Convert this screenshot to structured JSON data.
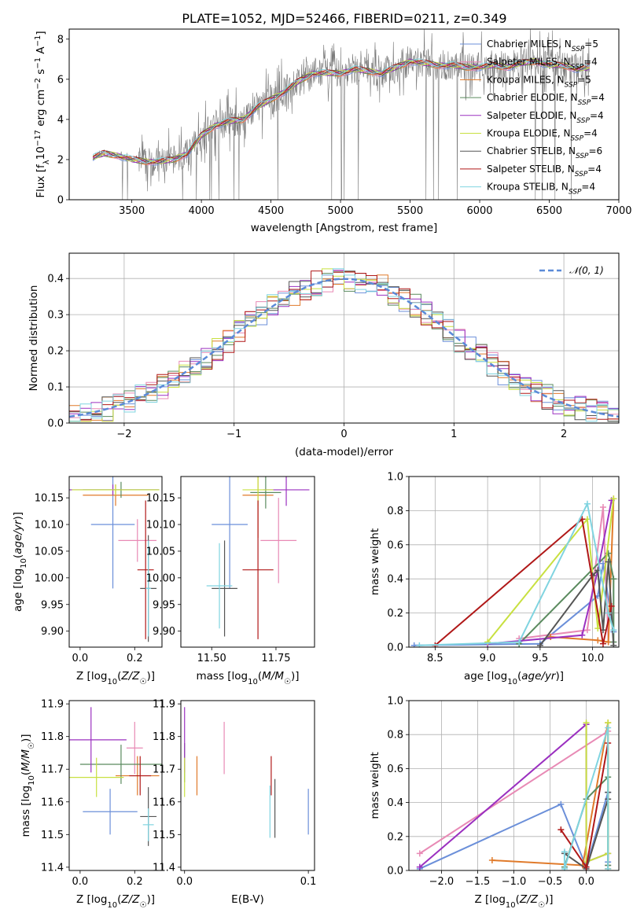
{
  "title": "PLATE=1052, MJD=52466, FIBERID=0211, z=0.349",
  "colors": {
    "chabrier_miles": "#6b8fd9",
    "salpeter_miles": "#e88ab5",
    "kroupa_miles": "#e07a2a",
    "chabrier_elodie": "#5a8a5e",
    "salpeter_elodie": "#9b30c0",
    "kroupa_elodie": "#c8e040",
    "chabrier_stelib": "#555555",
    "salpeter_stelib": "#b01818",
    "kroupa_stelib": "#80d4e0",
    "data": "#7a7a7a",
    "normal": "#5b8ad8"
  },
  "legend": {
    "models": [
      {
        "name": "Chabrier MILES",
        "nssp": "5",
        "color": "#6b8fd9"
      },
      {
        "name": "Salpeter MILES",
        "nssp": "4",
        "color": "#e88ab5"
      },
      {
        "name": "Kroupa MILES",
        "nssp": "5",
        "color": "#e07a2a"
      },
      {
        "name": "Chabrier ELODIE",
        "nssp": "4",
        "color": "#5a8a5e"
      },
      {
        "name": "Salpeter ELODIE",
        "nssp": "4",
        "color": "#9b30c0"
      },
      {
        "name": "Kroupa ELODIE",
        "nssp": "4",
        "color": "#c8e040"
      },
      {
        "name": "Chabrier STELIB",
        "nssp": "6",
        "color": "#555555"
      },
      {
        "name": "Salpeter STELIB",
        "nssp": "4",
        "color": "#b01818"
      },
      {
        "name": "Kroupa STELIB",
        "nssp": "4",
        "color": "#80d4e0"
      }
    ],
    "normal_label": "𝒩(0, 1)"
  },
  "chart_data": [
    {
      "type": "line",
      "id": "spectrum",
      "xlabel": "wavelength [Angstrom, rest frame]",
      "ylabel": "Flux [f_λ 10^-17 erg cm^-2 s^-1 A^-1]",
      "xlim": [
        3050,
        7000
      ],
      "ylim": [
        0,
        8.5
      ],
      "xticks": [
        3500,
        4000,
        4500,
        5000,
        5500,
        6000,
        6500,
        7000
      ],
      "yticks": [
        0,
        2,
        4,
        6,
        8
      ],
      "continuum": {
        "x": [
          3220,
          3300,
          3400,
          3500,
          3600,
          3700,
          3800,
          3900,
          4000,
          4100,
          4200,
          4300,
          4400,
          4500,
          4600,
          4700,
          4800,
          4900,
          5000,
          5100,
          5200,
          5300,
          5400,
          5500,
          5600,
          5700,
          5800,
          5900,
          6000,
          6100,
          6200,
          6300,
          6400,
          6500,
          6600,
          6700,
          6790
        ],
        "y": [
          2.1,
          2.3,
          2.2,
          2.0,
          1.9,
          1.9,
          2.0,
          2.3,
          3.2,
          3.7,
          3.9,
          4.0,
          4.6,
          5.0,
          5.4,
          5.9,
          6.3,
          6.3,
          6.3,
          6.5,
          6.4,
          6.3,
          6.6,
          6.9,
          6.8,
          6.7,
          6.7,
          6.6,
          6.6,
          6.7,
          6.6,
          6.8,
          6.9,
          6.7,
          6.7,
          6.5,
          6.6
        ]
      },
      "grid": false
    },
    {
      "type": "histogram",
      "id": "residuals",
      "xlabel": "(data-model)/error",
      "ylabel": "Normed distribution",
      "xlim": [
        -2.5,
        2.5
      ],
      "ylim": [
        0,
        0.47
      ],
      "xticks": [
        -2,
        -1,
        0,
        1,
        2
      ],
      "yticks": [
        0.0,
        0.1,
        0.2,
        0.3,
        0.4
      ],
      "bin_width": 0.1,
      "bin_start": -2.5,
      "reference": "standard normal",
      "grid": true
    },
    {
      "type": "scatter",
      "id": "age_vs_Z",
      "xlabel": "Z [log10(Z/Z☉)]",
      "ylabel": "age [log10(age/yr)]",
      "xlim": [
        -0.04,
        0.3
      ],
      "ylim": [
        9.87,
        10.19
      ],
      "xticks": [
        0.0,
        0.2
      ],
      "xticklabels": [
        "0.0",
        "0.2"
      ],
      "yticks": [
        9.9,
        9.95,
        10.0,
        10.05,
        10.1,
        10.15
      ],
      "points": [
        {
          "x": 0.12,
          "y": 10.1,
          "xerr": 0.08,
          "yerr": 0.12,
          "color": "#6b8fd9"
        },
        {
          "x": 0.21,
          "y": 10.07,
          "xerr": 0.07,
          "yerr": 0.04,
          "color": "#e88ab5"
        },
        {
          "x": 0.13,
          "y": 10.155,
          "xerr": 0.12,
          "yerr": 0.02,
          "color": "#e07a2a"
        },
        {
          "x": 0.15,
          "y": 10.165,
          "xerr": 0.14,
          "yerr": 0.015,
          "color": "#5a8a5e"
        },
        {
          "x": 0.12,
          "y": 10.165,
          "xerr": 0.17,
          "yerr": 0.01,
          "color": "#9b30c0"
        },
        {
          "x": 0.13,
          "y": 10.165,
          "xerr": 0.16,
          "yerr": 0.01,
          "color": "#c8e040"
        },
        {
          "x": 0.25,
          "y": 9.98,
          "xerr": 0.03,
          "yerr": 0.1,
          "color": "#555555"
        },
        {
          "x": 0.24,
          "y": 10.015,
          "xerr": 0.03,
          "yerr": 0.13,
          "color": "#b01818"
        },
        {
          "x": 0.25,
          "y": 9.98,
          "xerr": 0.01,
          "yerr": 0.09,
          "color": "#80d4e0"
        }
      ]
    },
    {
      "type": "scatter",
      "id": "age_vs_mass",
      "xlabel": "mass [log10(M/M☉)]",
      "ylabel": "",
      "xlim": [
        11.38,
        11.9
      ],
      "ylim": [
        9.87,
        10.19
      ],
      "xticks": [
        11.5,
        11.75
      ],
      "xticklabels": [
        "11.50",
        "11.75"
      ],
      "yticks": [
        9.9,
        9.95,
        10.0,
        10.05,
        10.1,
        10.15
      ],
      "points": [
        {
          "x": 11.57,
          "y": 10.1,
          "xerr": 0.07,
          "yerr": 0.12,
          "color": "#6b8fd9"
        },
        {
          "x": 11.76,
          "y": 10.07,
          "xerr": 0.07,
          "yerr": 0.08,
          "color": "#e88ab5"
        },
        {
          "x": 11.68,
          "y": 10.155,
          "xerr": 0.06,
          "yerr": 0.08,
          "color": "#e07a2a"
        },
        {
          "x": 11.71,
          "y": 10.16,
          "xerr": 0.06,
          "yerr": 0.03,
          "color": "#5a8a5e"
        },
        {
          "x": 11.79,
          "y": 10.165,
          "xerr": 0.09,
          "yerr": 0.03,
          "color": "#9b30c0"
        },
        {
          "x": 11.68,
          "y": 10.165,
          "xerr": 0.06,
          "yerr": 0.03,
          "color": "#c8e040"
        },
        {
          "x": 11.55,
          "y": 9.98,
          "xerr": 0.05,
          "yerr": 0.09,
          "color": "#555555"
        },
        {
          "x": 11.68,
          "y": 10.015,
          "xerr": 0.06,
          "yerr": 0.13,
          "color": "#b01818"
        },
        {
          "x": 11.53,
          "y": 9.985,
          "xerr": 0.05,
          "yerr": 0.08,
          "color": "#80d4e0"
        }
      ]
    },
    {
      "type": "line",
      "id": "mass_weight_vs_age",
      "xlabel": "age [log10(age/yr)]",
      "ylabel": "mass weight",
      "xlim": [
        8.25,
        10.25
      ],
      "ylim": [
        0,
        1.0
      ],
      "xticks": [
        8.5,
        9.0,
        9.5,
        10.0
      ],
      "yticks": [
        0.0,
        0.2,
        0.4,
        0.6,
        0.8,
        1.0
      ],
      "series": [
        {
          "color": "#6b8fd9",
          "x": [
            8.3,
            9.5,
            10.05,
            10.1,
            10.2
          ],
          "y": [
            0.01,
            0.02,
            0.3,
            0.49,
            0.09
          ]
        },
        {
          "color": "#e88ab5",
          "x": [
            9.3,
            9.95,
            10.1,
            10.15
          ],
          "y": [
            0.05,
            0.1,
            0.82,
            0.03
          ]
        },
        {
          "color": "#e07a2a",
          "x": [
            9.6,
            10.05,
            10.15,
            10.2
          ],
          "y": [
            0.06,
            0.04,
            0.03,
            0.87
          ]
        },
        {
          "color": "#5a8a5e",
          "x": [
            9.3,
            10.15,
            10.2,
            10.2
          ],
          "y": [
            0.02,
            0.55,
            0.4,
            0.03
          ]
        },
        {
          "color": "#9b30c0",
          "x": [
            9.0,
            9.9,
            10.05,
            10.18
          ],
          "y": [
            0.02,
            0.07,
            0.45,
            0.86
          ]
        },
        {
          "color": "#c8e040",
          "x": [
            9.0,
            9.95,
            10.05,
            10.2
          ],
          "y": [
            0.03,
            0.75,
            0.11,
            0.87
          ]
        },
        {
          "color": "#555555",
          "x": [
            9.5,
            10.0,
            10.05,
            10.1,
            10.15,
            10.2
          ],
          "y": [
            0.01,
            0.42,
            0.45,
            0.1,
            0.5,
            0.01
          ]
        },
        {
          "color": "#b01818",
          "x": [
            8.5,
            9.9,
            10.1,
            10.18
          ],
          "y": [
            0.01,
            0.75,
            0.02,
            0.24
          ]
        },
        {
          "color": "#80d4e0",
          "x": [
            8.35,
            9.3,
            9.95,
            10.15,
            10.2
          ],
          "y": [
            0.01,
            0.03,
            0.84,
            0.2,
            0.1
          ]
        }
      ],
      "grid": true
    },
    {
      "type": "scatter",
      "id": "mass_vs_Z",
      "xlabel": "Z [log10(Z/Z☉)]",
      "ylabel": "mass [log10(M/M☉)]",
      "xlim": [
        -0.04,
        0.3
      ],
      "ylim": [
        11.39,
        11.91
      ],
      "xticks": [
        0.0,
        0.2
      ],
      "xticklabels": [
        "0.0",
        "0.2"
      ],
      "yticks": [
        11.4,
        11.5,
        11.6,
        11.7,
        11.8,
        11.9
      ],
      "points": [
        {
          "x": 0.11,
          "y": 11.57,
          "xerr": 0.1,
          "yerr": 0.07,
          "color": "#6b8fd9"
        },
        {
          "x": 0.2,
          "y": 11.765,
          "xerr": 0.03,
          "yerr": 0.08,
          "color": "#e88ab5"
        },
        {
          "x": 0.21,
          "y": 11.68,
          "xerr": 0.08,
          "yerr": 0.06,
          "color": "#e07a2a"
        },
        {
          "x": 0.15,
          "y": 11.715,
          "xerr": 0.15,
          "yerr": 0.06,
          "color": "#5a8a5e"
        },
        {
          "x": 0.04,
          "y": 11.79,
          "xerr": 0.13,
          "yerr": 0.1,
          "color": "#9b30c0"
        },
        {
          "x": 0.06,
          "y": 11.675,
          "xerr": 0.1,
          "yerr": 0.06,
          "color": "#c8e040"
        },
        {
          "x": 0.25,
          "y": 11.555,
          "xerr": 0.03,
          "yerr": 0.09,
          "color": "#555555"
        },
        {
          "x": 0.22,
          "y": 11.68,
          "xerr": 0.04,
          "yerr": 0.06,
          "color": "#b01818"
        },
        {
          "x": 0.25,
          "y": 11.53,
          "xerr": 0.02,
          "yerr": 0.05,
          "color": "#80d4e0"
        }
      ]
    },
    {
      "type": "scatter",
      "id": "mass_vs_ebv",
      "xlabel": "E(B-V)",
      "ylabel": "",
      "xlim": [
        -0.003,
        0.105
      ],
      "ylim": [
        11.39,
        11.91
      ],
      "xticks": [
        0.0,
        0.1
      ],
      "xticklabels": [
        "0.0",
        "0.1"
      ],
      "yticks": [
        11.4,
        11.5,
        11.6,
        11.7,
        11.8,
        11.9
      ],
      "points": [
        {
          "x": 0.1,
          "y": 11.57,
          "yerr": 0.07,
          "color": "#6b8fd9"
        },
        {
          "x": 0.032,
          "y": 11.765,
          "yerr": 0.08,
          "color": "#e88ab5"
        },
        {
          "x": 0.01,
          "y": 11.68,
          "yerr": 0.06,
          "color": "#e07a2a"
        },
        {
          "x": 0.0,
          "y": 11.72,
          "yerr": 0.06,
          "color": "#5a8a5e"
        },
        {
          "x": 0.0,
          "y": 11.79,
          "yerr": 0.1,
          "color": "#9b30c0"
        },
        {
          "x": 0.0,
          "y": 11.675,
          "yerr": 0.06,
          "color": "#c8e040"
        },
        {
          "x": 0.073,
          "y": 11.58,
          "yerr": 0.09,
          "color": "#555555"
        },
        {
          "x": 0.07,
          "y": 11.68,
          "yerr": 0.06,
          "color": "#b01818"
        },
        {
          "x": 0.069,
          "y": 11.57,
          "yerr": 0.08,
          "color": "#80d4e0"
        }
      ]
    },
    {
      "type": "line",
      "id": "mass_weight_vs_Z",
      "xlabel": "Z [log10(Z/Z☉)]",
      "ylabel": "mass weight",
      "xlim": [
        -2.45,
        0.45
      ],
      "ylim": [
        0,
        1.0
      ],
      "xticks": [
        -2.0,
        -1.5,
        -1.0,
        -0.5,
        0.0
      ],
      "yticks": [
        0.0,
        0.2,
        0.4,
        0.6,
        0.8,
        1.0
      ],
      "series": [
        {
          "color": "#6b8fd9",
          "x": [
            -2.3,
            -0.35,
            0.0,
            0.3,
            0.3
          ],
          "y": [
            0.01,
            0.39,
            0.02,
            0.46,
            0.05
          ]
        },
        {
          "color": "#e88ab5",
          "x": [
            -2.3,
            0.3,
            0.3
          ],
          "y": [
            0.1,
            0.82,
            0.03
          ]
        },
        {
          "color": "#e07a2a",
          "x": [
            -1.3,
            -0.05,
            0.3,
            0.3
          ],
          "y": [
            0.06,
            0.03,
            0.87,
            0.01
          ]
        },
        {
          "color": "#5a8a5e",
          "x": [
            -0.3,
            0.0,
            0.3,
            0.3
          ],
          "y": [
            0.02,
            0.42,
            0.55,
            0.03
          ]
        },
        {
          "color": "#9b30c0",
          "x": [
            -2.3,
            0.0,
            0.0,
            0.3
          ],
          "y": [
            0.02,
            0.86,
            0.05,
            0.1
          ]
        },
        {
          "color": "#c8e040",
          "x": [
            0.0,
            0.0,
            0.3,
            0.3
          ],
          "y": [
            0.87,
            0.05,
            0.1,
            0.87
          ]
        },
        {
          "color": "#555555",
          "x": [
            -0.3,
            0.0,
            0.3,
            0.3
          ],
          "y": [
            0.1,
            0.01,
            0.42,
            0.46
          ]
        },
        {
          "color": "#b01818",
          "x": [
            -0.35,
            0.0,
            0.3
          ],
          "y": [
            0.24,
            0.02,
            0.75
          ]
        },
        {
          "color": "#80d4e0",
          "x": [
            -0.3,
            -0.3,
            0.3,
            0.3
          ],
          "y": [
            0.11,
            0.01,
            0.84,
            0.01
          ]
        }
      ],
      "grid": true
    }
  ]
}
